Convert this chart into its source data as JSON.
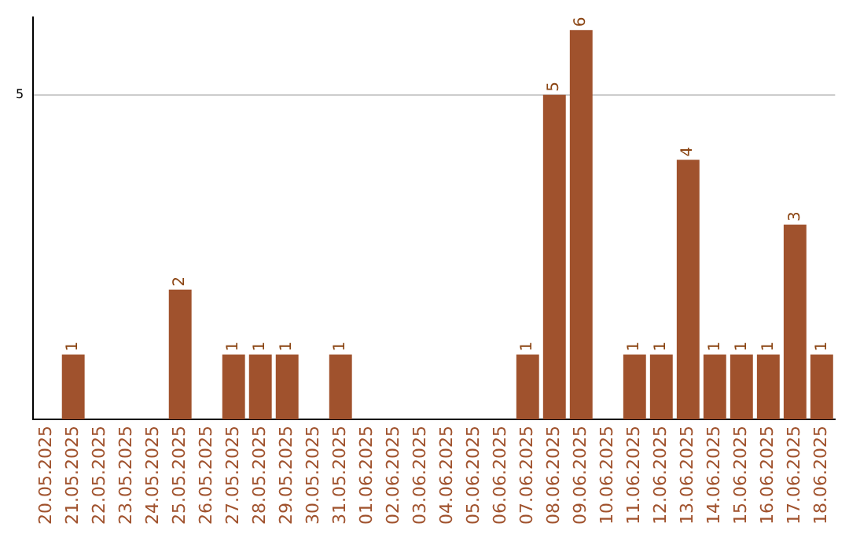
{
  "chart_data": {
    "type": "bar",
    "categories": [
      "20.05.2025",
      "21.05.2025",
      "22.05.2025",
      "23.05.2025",
      "24.05.2025",
      "25.05.2025",
      "26.05.2025",
      "27.05.2025",
      "28.05.2025",
      "29.05.2025",
      "30.05.2025",
      "31.05.2025",
      "01.06.2025",
      "02.06.2025",
      "03.06.2025",
      "04.06.2025",
      "05.06.2025",
      "06.06.2025",
      "07.06.2025",
      "08.06.2025",
      "09.06.2025",
      "10.06.2025",
      "11.06.2025",
      "12.06.2025",
      "13.06.2025",
      "14.06.2025",
      "15.06.2025",
      "16.06.2025",
      "17.06.2025",
      "18.06.2025"
    ],
    "values": [
      0,
      1,
      0,
      0,
      0,
      2,
      0,
      1,
      1,
      1,
      0,
      1,
      0,
      0,
      0,
      0,
      0,
      0,
      1,
      5,
      6,
      0,
      1,
      1,
      4,
      1,
      1,
      1,
      3,
      1
    ],
    "value_labels": [
      null,
      "1",
      null,
      null,
      null,
      "2",
      null,
      "1",
      "1",
      "1",
      null,
      "1",
      null,
      null,
      null,
      null,
      null,
      null,
      "1",
      "5",
      "6",
      null,
      "1",
      "1",
      "4",
      "1",
      "1",
      "1",
      "3",
      "1"
    ],
    "color": "#a0522d",
    "ylim": [
      0,
      6.2
    ],
    "yticks": [
      5
    ],
    "grid": "y",
    "legend": false
  }
}
